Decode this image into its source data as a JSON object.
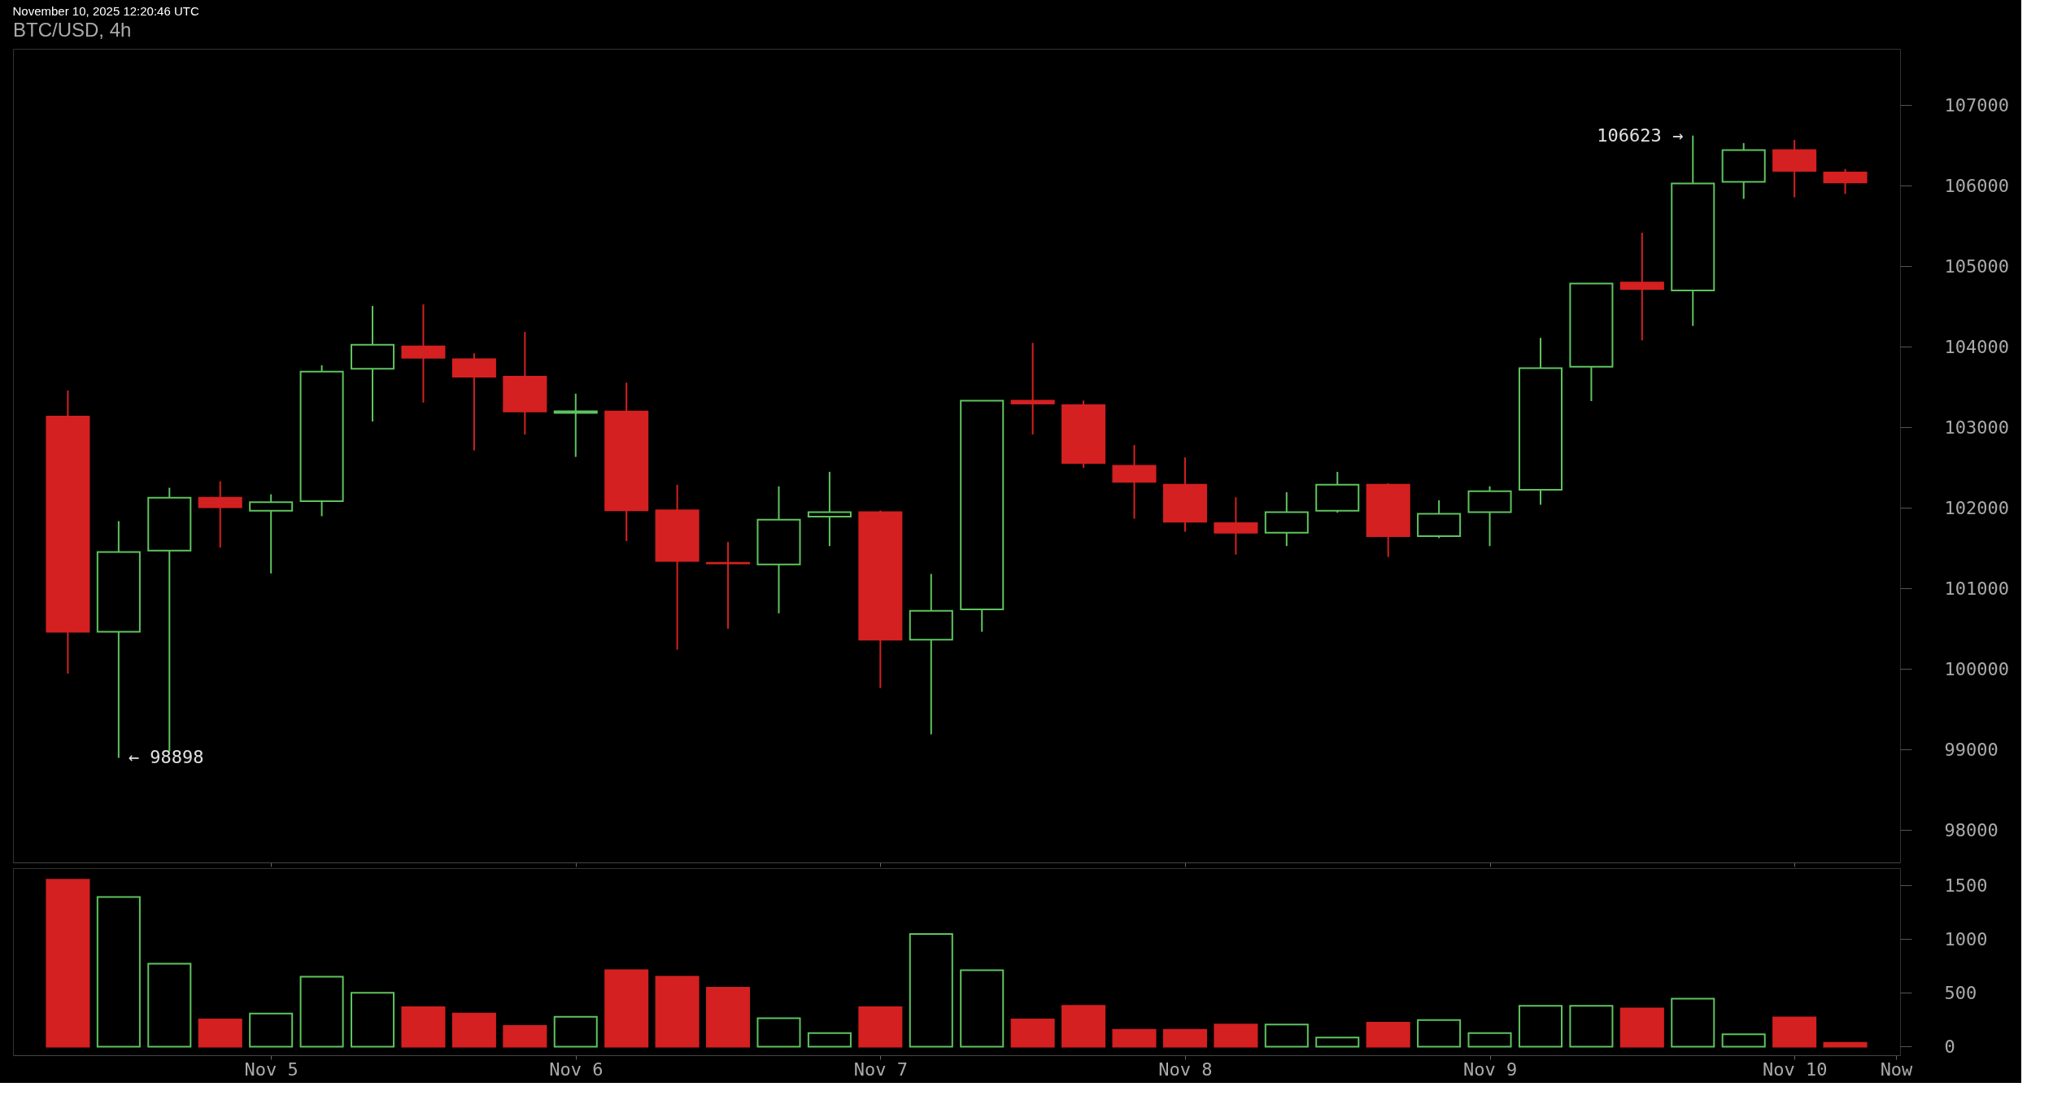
{
  "chart_data": [
    {
      "type": "candlestick",
      "title": "BTC/USD, 4h",
      "x": [
        "2025-11-04T08:00",
        "2025-11-04T12:00",
        "2025-11-04T16:00",
        "2025-11-04T20:00",
        "2025-11-05T00:00",
        "2025-11-05T04:00",
        "2025-11-05T08:00",
        "2025-11-05T12:00",
        "2025-11-05T16:00",
        "2025-11-05T20:00",
        "2025-11-06T00:00",
        "2025-11-06T04:00",
        "2025-11-06T08:00",
        "2025-11-06T12:00",
        "2025-11-06T16:00",
        "2025-11-06T20:00",
        "2025-11-07T00:00",
        "2025-11-07T04:00",
        "2025-11-07T08:00",
        "2025-11-07T12:00",
        "2025-11-07T16:00",
        "2025-11-07T20:00",
        "2025-11-08T00:00",
        "2025-11-08T04:00",
        "2025-11-08T08:00",
        "2025-11-08T12:00",
        "2025-11-08T16:00",
        "2025-11-08T20:00",
        "2025-11-09T00:00",
        "2025-11-09T04:00",
        "2025-11-09T08:00",
        "2025-11-09T12:00",
        "2025-11-09T16:00",
        "2025-11-09T20:00",
        "2025-11-10T00:00",
        "2025-11-10T04:00"
      ],
      "ohlc": [
        [
          103135,
          103457,
          99944,
          100463
        ],
        [
          100463,
          101836,
          98898,
          101453
        ],
        [
          101471,
          102251,
          98979,
          102127
        ],
        [
          102127,
          102331,
          101509,
          102009
        ],
        [
          101966,
          102170,
          101187,
          102071
        ],
        [
          102084,
          103772,
          101898,
          103692
        ],
        [
          103729,
          104508,
          103073,
          104025
        ],
        [
          104007,
          104527,
          103308,
          103865
        ],
        [
          103846,
          103920,
          102714,
          103630
        ],
        [
          103630,
          104186,
          102912,
          103197
        ],
        [
          103180,
          103419,
          102634,
          103200
        ],
        [
          103197,
          103556,
          101589,
          101972
        ],
        [
          101972,
          102288,
          100241,
          101342
        ],
        [
          101320,
          101577,
          100501,
          101311
        ],
        [
          101298,
          102269,
          100692,
          101855
        ],
        [
          101892,
          102449,
          101527,
          101948
        ],
        [
          101948,
          101970,
          99765,
          100365
        ],
        [
          100365,
          101181,
          99190,
          100723
        ],
        [
          100742,
          103333,
          100464,
          103333
        ],
        [
          103333,
          104050,
          102912,
          103296
        ],
        [
          103277,
          103333,
          102498,
          102560
        ],
        [
          102523,
          102782,
          101867,
          102325
        ],
        [
          102288,
          102628,
          101706,
          101830
        ],
        [
          101812,
          102133,
          101422,
          101694
        ],
        [
          101694,
          102195,
          101527,
          101948
        ],
        [
          101966,
          102449,
          101942,
          102288
        ],
        [
          102288,
          102306,
          101391,
          101651
        ],
        [
          101651,
          102096,
          101626,
          101929
        ],
        [
          101948,
          102269,
          101527,
          102207
        ],
        [
          102226,
          104112,
          102040,
          103735
        ],
        [
          103753,
          104786,
          103327,
          104786
        ],
        [
          104798,
          105417,
          104081,
          104718
        ],
        [
          104700,
          106623,
          104260,
          106029
        ],
        [
          106048,
          106530,
          105837,
          106443
        ],
        [
          106443,
          106567,
          105856,
          106184
        ],
        [
          106165,
          106208,
          105899,
          106041
        ]
      ],
      "colors": [
        "#d42020",
        "#5ec45e",
        "#5ec45e",
        "#d42020",
        "#5ec45e",
        "#5ec45e",
        "#5ec45e",
        "#d42020",
        "#d42020",
        "#d42020",
        "#5ec45e",
        "#d42020",
        "#d42020",
        "#d42020",
        "#5ec45e",
        "#5ec45e",
        "#d42020",
        "#5ec45e",
        "#5ec45e",
        "#d42020",
        "#d42020",
        "#d42020",
        "#d42020",
        "#d42020",
        "#5ec45e",
        "#5ec45e",
        "#d42020",
        "#5ec45e",
        "#5ec45e",
        "#5ec45e",
        "#5ec45e",
        "#d42020",
        "#5ec45e",
        "#5ec45e",
        "#d42020",
        "#d42020"
      ],
      "xlim": [
        "2025-11-04T04:00",
        "2025-11-10T08:00"
      ],
      "xticks": [
        {
          "value": "2025-11-05T00:00",
          "label": null
        },
        {
          "value": "2025-11-06T00:00",
          "label": null
        },
        {
          "value": "2025-11-07T00:00",
          "label": null
        },
        {
          "value": "2025-11-08T00:00",
          "label": null
        },
        {
          "value": "2025-11-09T00:00",
          "label": null
        },
        {
          "value": "2025-11-10T00:00",
          "label": null
        }
      ],
      "ylim": [
        97600,
        107700
      ],
      "yticks": [
        98000,
        99000,
        100000,
        101000,
        102000,
        103000,
        104000,
        105000,
        106000,
        107000
      ],
      "tick_labels": "y",
      "grid": false,
      "annotations": [
        "November 10, 2025 12:20:46 UTC",
        {
          "text": "← 98898",
          "x": "2025-11-04T12:00",
          "y": 98898
        },
        {
          "text": "106623 →",
          "x": "2025-11-09T16:00",
          "y": 106623
        }
      ]
    },
    {
      "type": "bar",
      "x": [
        "2025-11-04T08:00",
        "2025-11-04T12:00",
        "2025-11-04T16:00",
        "2025-11-04T20:00",
        "2025-11-05T00:00",
        "2025-11-05T04:00",
        "2025-11-05T08:00",
        "2025-11-05T12:00",
        "2025-11-05T16:00",
        "2025-11-05T20:00",
        "2025-11-06T00:00",
        "2025-11-06T04:00",
        "2025-11-06T08:00",
        "2025-11-06T12:00",
        "2025-11-06T16:00",
        "2025-11-06T20:00",
        "2025-11-07T00:00",
        "2025-11-07T04:00",
        "2025-11-07T08:00",
        "2025-11-07T12:00",
        "2025-11-07T16:00",
        "2025-11-07T20:00",
        "2025-11-08T00:00",
        "2025-11-08T04:00",
        "2025-11-08T08:00",
        "2025-11-08T12:00",
        "2025-11-08T16:00",
        "2025-11-08T20:00",
        "2025-11-09T00:00",
        "2025-11-09T04:00",
        "2025-11-09T08:00",
        "2025-11-09T12:00",
        "2025-11-09T16:00",
        "2025-11-09T20:00",
        "2025-11-10T00:00",
        "2025-11-10T04:00"
      ],
      "values": [
        1553,
        1391,
        771,
        253,
        307,
        650,
        500,
        367,
        307,
        193,
        277,
        710,
        650,
        548,
        265,
        126,
        367,
        1047,
        710,
        253,
        379,
        156,
        156,
        205,
        205,
        84,
        223,
        247,
        126,
        379,
        379,
        355,
        445,
        114,
        271,
        36
      ],
      "colors": [
        "#d42020",
        "#5ec45e",
        "#5ec45e",
        "#d42020",
        "#5ec45e",
        "#5ec45e",
        "#5ec45e",
        "#d42020",
        "#d42020",
        "#d42020",
        "#5ec45e",
        "#d42020",
        "#d42020",
        "#d42020",
        "#5ec45e",
        "#5ec45e",
        "#d42020",
        "#5ec45e",
        "#5ec45e",
        "#d42020",
        "#d42020",
        "#d42020",
        "#d42020",
        "#d42020",
        "#5ec45e",
        "#5ec45e",
        "#d42020",
        "#5ec45e",
        "#5ec45e",
        "#5ec45e",
        "#5ec45e",
        "#d42020",
        "#5ec45e",
        "#5ec45e",
        "#d42020",
        "#d42020"
      ],
      "xlim": [
        "2025-11-04T04:00",
        "2025-11-10T08:00"
      ],
      "xticks": [
        {
          "value": "2025-11-05T00:00",
          "label": "Nov 5"
        },
        {
          "value": "2025-11-06T00:00",
          "label": "Nov 6"
        },
        {
          "value": "2025-11-07T00:00",
          "label": "Nov 7"
        },
        {
          "value": "2025-11-08T00:00",
          "label": "Nov 8"
        },
        {
          "value": "2025-11-09T00:00",
          "label": "Nov 9"
        },
        {
          "value": "2025-11-10T00:00",
          "label": "Nov 10"
        },
        {
          "value": "2025-11-10T08:00",
          "label": "Now"
        }
      ],
      "ylim": [
        -80,
        1660
      ],
      "yticks": [
        0,
        500,
        1000,
        1500
      ],
      "grid": false
    }
  ]
}
